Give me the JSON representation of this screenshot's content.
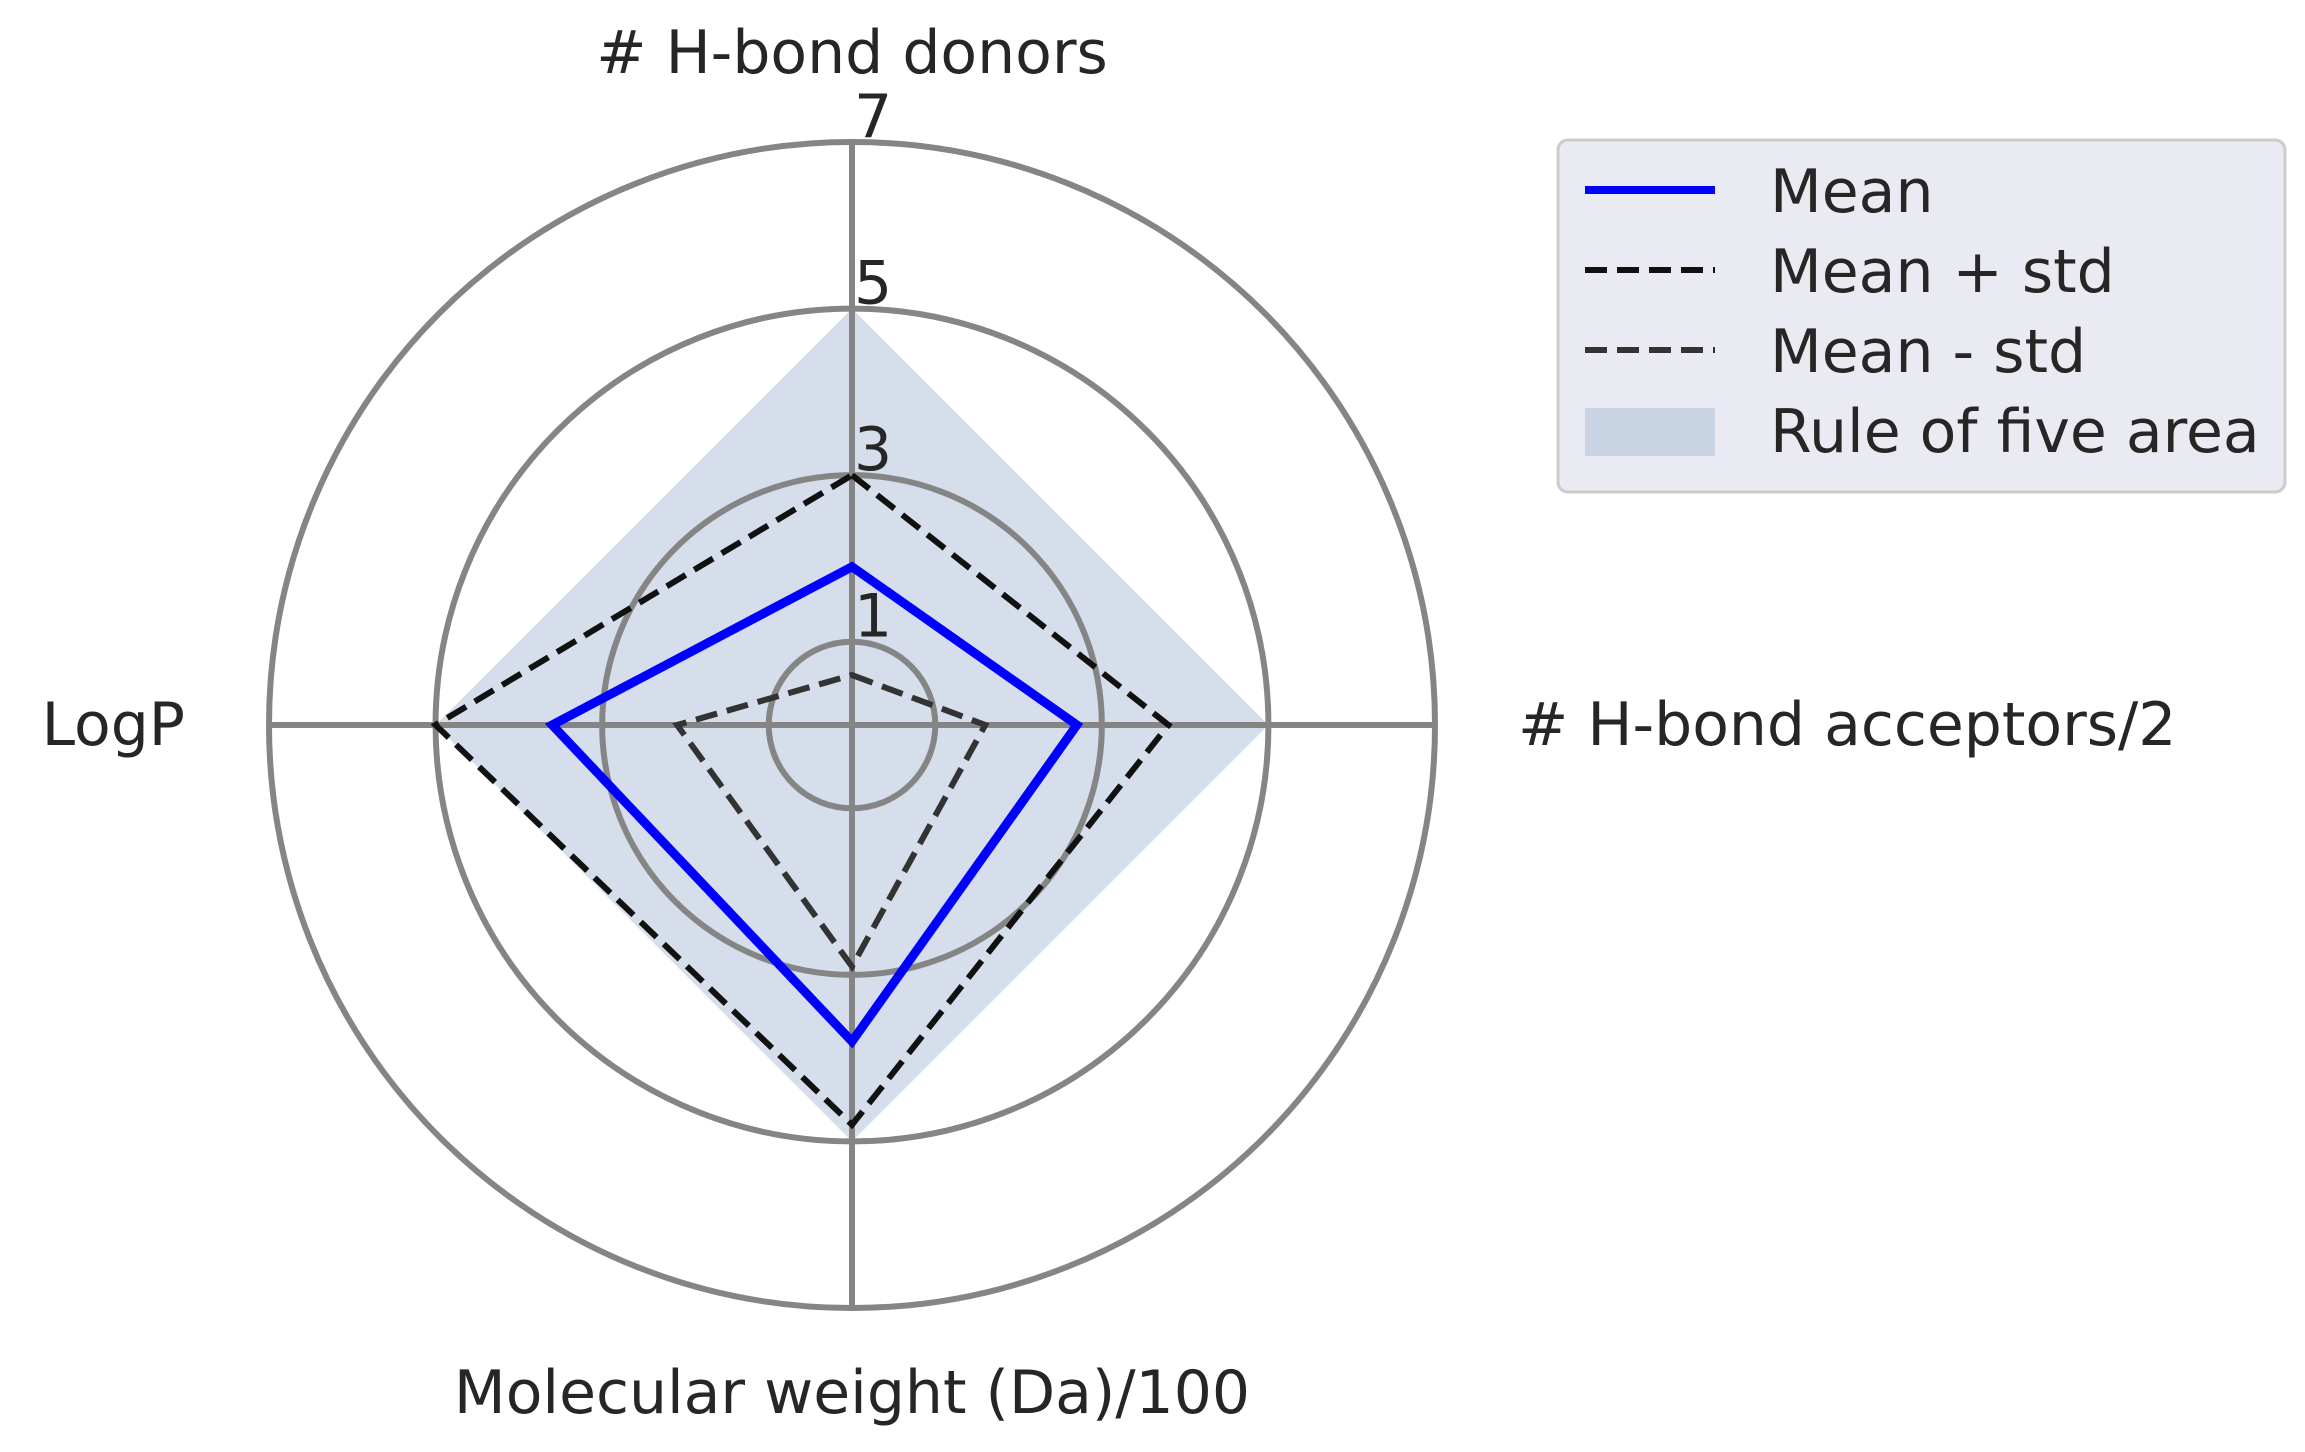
{
  "chart_data": {
    "type": "radar",
    "axes": [
      "# H-bond donors",
      "# H-bond acceptors/2",
      "Molecular weight (Da)/100",
      "LogP"
    ],
    "radial_ticks": [
      1,
      3,
      5,
      7
    ],
    "rlim": [
      0,
      7
    ],
    "grid": true,
    "legend_position": "top-right, outside plot",
    "series": [
      {
        "name": "Mean",
        "values": [
          1.9,
          2.7,
          3.8,
          3.6
        ],
        "color": "#0000ff",
        "style": "solid"
      },
      {
        "name": "Mean + std",
        "values": [
          3.0,
          3.8,
          4.8,
          5.0
        ],
        "color": "#111111",
        "style": "dashed"
      },
      {
        "name": "Mean - std",
        "values": [
          0.6,
          1.6,
          2.9,
          2.1
        ],
        "color": "#333333",
        "style": "dashed"
      }
    ],
    "area": {
      "name": "Rule of five area",
      "values": [
        5,
        5,
        5,
        5
      ],
      "color": "#c8d3e4"
    }
  },
  "colors": {
    "grid": "#858585",
    "legend_background": "#eaeaf2",
    "legend_border": "#cccccc"
  }
}
